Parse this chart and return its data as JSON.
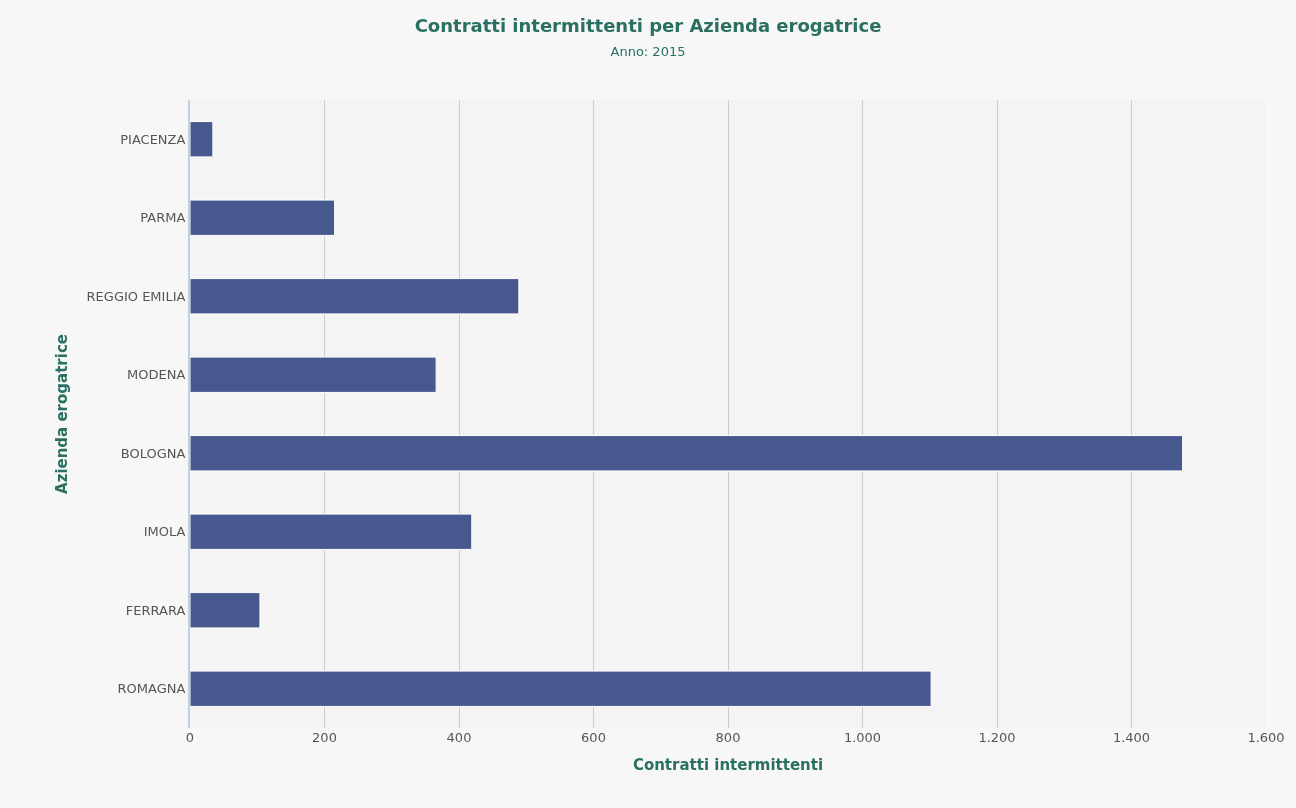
{
  "chart_data": {
    "type": "bar",
    "orientation": "horizontal",
    "title": "Contratti intermittenti per Azienda erogatrice",
    "subtitle": "Anno: 2015",
    "xlabel": "Contratti intermittenti",
    "ylabel": "Azienda erogatrice",
    "categories": [
      "PIACENZA",
      "PARMA",
      "REGGIO EMILIA",
      "MODENA",
      "BOLOGNA",
      "IMOLA",
      "FERRARA",
      "ROMAGNA"
    ],
    "values": [
      34,
      215,
      489,
      366,
      1476,
      419,
      104,
      1102
    ],
    "color": "#47588f",
    "xlim": [
      0,
      1600
    ],
    "xticks": [
      0,
      200,
      400,
      600,
      800,
      {
        "value": 1000,
        "label": "1.000"
      },
      {
        "value": 1200,
        "label": "1.200"
      },
      {
        "value": 1400,
        "label": "1.400"
      },
      {
        "value": 1600,
        "label": "1.600"
      }
    ],
    "grid": "x",
    "legend": false
  }
}
